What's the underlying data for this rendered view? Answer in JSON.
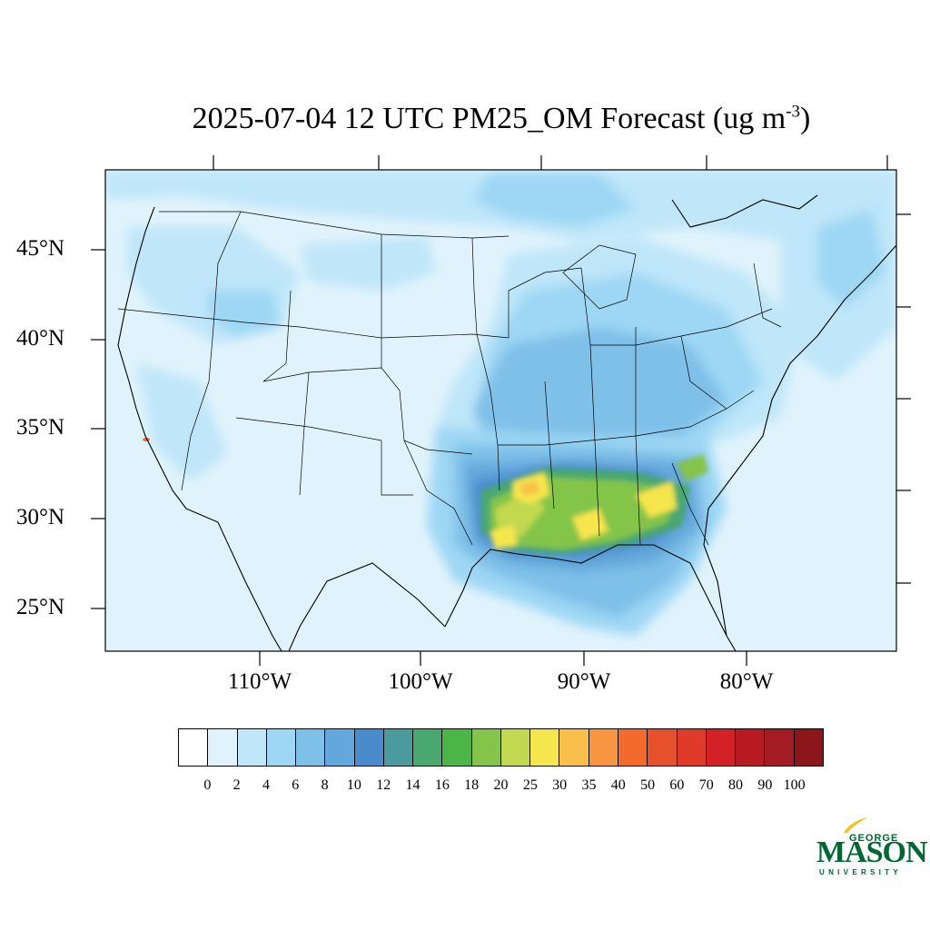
{
  "title": {
    "main": "2025-07-04 12 UTC PM25_OM Forecast (ug m",
    "sup": "-3",
    "close": ")"
  },
  "lat_labels": [
    "45°N",
    "40°N",
    "35°N",
    "30°N",
    "25°N"
  ],
  "lon_labels": [
    "110°W",
    "100°W",
    "90°W",
    "80°W"
  ],
  "colorbar": {
    "levels": [
      "0",
      "2",
      "4",
      "6",
      "8",
      "10",
      "12",
      "14",
      "16",
      "18",
      "20",
      "25",
      "30",
      "35",
      "40",
      "50",
      "60",
      "70",
      "80",
      "90",
      "100"
    ],
    "colors": [
      "#ffffff",
      "#e0f3fc",
      "#bfe6f9",
      "#9dd7f4",
      "#7fc0e8",
      "#63a8dc",
      "#4a8ccb",
      "#4a9a9e",
      "#48a870",
      "#4bb548",
      "#84c44a",
      "#c2d850",
      "#f6e64e",
      "#f8c04a",
      "#f89540",
      "#f26a2c",
      "#e7502c",
      "#df3a2a",
      "#d42128",
      "#b81a24",
      "#a31b23",
      "#8c1619"
    ]
  },
  "map_layers": {
    "background": "#e0f3fc",
    "low": "#bfe6f9",
    "moderate": "#9dd7f4",
    "elevated": "#7fc0e8",
    "high": "#63a8dc",
    "very_high": "#4a8ccb",
    "teal": "#48a870",
    "green": "#84c44a",
    "yellow": "#f6e64e",
    "orange": "#f8c04a",
    "hotspot": "#f26a2c"
  },
  "logo": {
    "line1": "GEORGE",
    "line2": "MASON",
    "line3": "UNIVERSITY",
    "color": "#006633",
    "accent": "#f2c12e"
  }
}
